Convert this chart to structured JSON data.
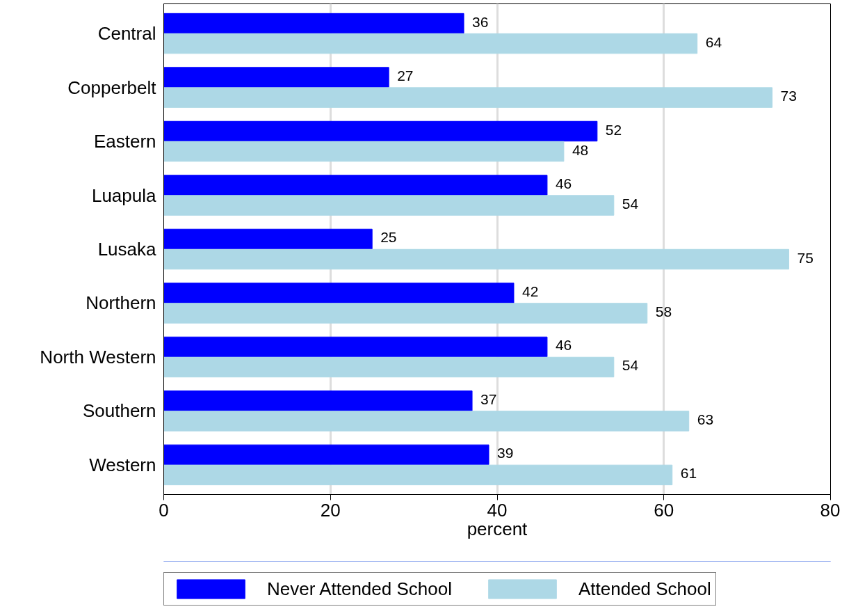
{
  "chart_data": {
    "type": "bar",
    "orientation": "horizontal",
    "xlabel": "percent",
    "categories": [
      "Central",
      "Copperbelt",
      "Eastern",
      "Luapula",
      "Lusaka",
      "Northern",
      "North Western",
      "Southern",
      "Western"
    ],
    "series": [
      {
        "name": "Never Attended School",
        "color": "#0000ff",
        "values": [
          36,
          27,
          52,
          46,
          25,
          42,
          46,
          37,
          39
        ]
      },
      {
        "name": "Attended School",
        "color": "#add8e6",
        "values": [
          64,
          73,
          48,
          54,
          75,
          58,
          54,
          63,
          61
        ]
      }
    ],
    "xlim": [
      0,
      80
    ],
    "xticks": [
      0,
      20,
      40,
      60,
      80
    ],
    "grid": "x",
    "data_labels": true,
    "legend": "bottom"
  }
}
